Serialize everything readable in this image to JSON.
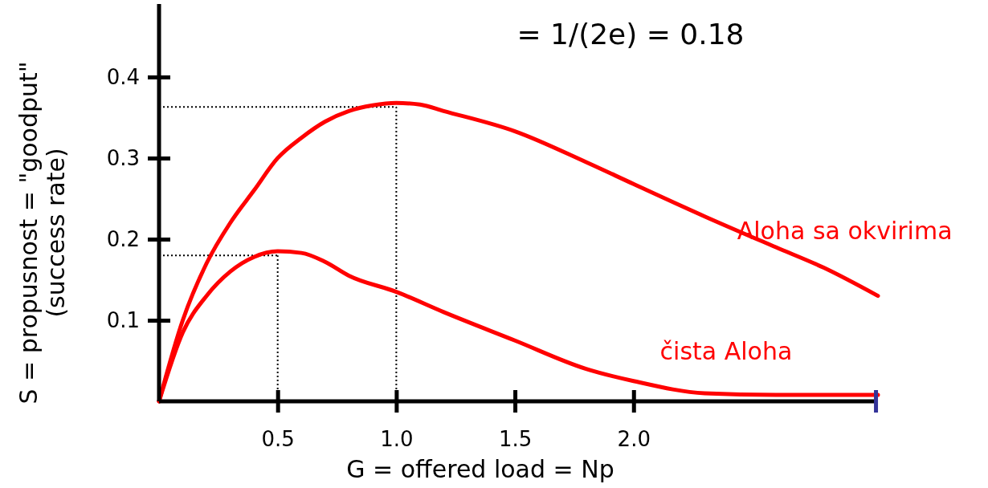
{
  "chart_data": {
    "type": "line",
    "title": "= 1/(2e) = 0.18",
    "xlabel": "G = offered load = Np",
    "ylabel": "S = propusnost = \"goodput\"\n(success rate)",
    "xlim": [
      0,
      3.03
    ],
    "ylim": [
      0,
      0.49
    ],
    "xticks": [
      {
        "value": 0.5,
        "label": "0.5"
      },
      {
        "value": 1,
        "label": "1.0"
      },
      {
        "value": 1.5,
        "label": "1.5"
      },
      {
        "value": 2,
        "label": "2.0"
      },
      {
        "value": 3.02,
        "label": null
      }
    ],
    "yticks": [
      0.1,
      0.2,
      0.3,
      0.4
    ],
    "grid": false,
    "marker": "none",
    "line_style": "solid",
    "series": [
      {
        "name": "Aloha sa okvirima",
        "color": "#ff0000",
        "x": [
          0,
          0.1,
          0.2,
          0.3,
          0.4,
          0.5,
          0.6,
          0.7,
          0.8,
          0.9,
          1.0,
          1.1,
          1.2,
          1.5,
          1.8,
          2.0,
          2.3,
          2.6,
          2.8,
          3.03
        ],
        "values": [
          0,
          0.1,
          0.17,
          0.22,
          0.26,
          0.3,
          0.325,
          0.345,
          0.358,
          0.365,
          0.368,
          0.366,
          0.358,
          0.333,
          0.295,
          0.268,
          0.228,
          0.19,
          0.165,
          0.13
        ]
      },
      {
        "name": "čista Aloha",
        "color": "#ff0000",
        "x": [
          0,
          0.1,
          0.2,
          0.3,
          0.4,
          0.5,
          0.6,
          0.7,
          0.8,
          1.0,
          1.2,
          1.5,
          1.8,
          2.0,
          2.3,
          2.6,
          3.03
        ],
        "values": [
          0,
          0.085,
          0.13,
          0.16,
          0.178,
          0.185,
          0.183,
          0.172,
          0.155,
          0.135,
          0.11,
          0.075,
          0.04,
          0.025,
          0.01,
          0.008,
          0.008
        ]
      }
    ],
    "ref_lines": [
      {
        "axis": "y",
        "value": 0.363,
        "color": "#000000",
        "line_style": "dotted"
      },
      {
        "axis": "x",
        "value": 1.0,
        "color": "#000000",
        "line_style": "dotted"
      },
      {
        "axis": "y",
        "value": 0.18,
        "color": "#000000",
        "line_style": "dotted"
      },
      {
        "axis": "x",
        "value": 0.5,
        "color": "#000000",
        "line_style": "dotted"
      }
    ]
  }
}
